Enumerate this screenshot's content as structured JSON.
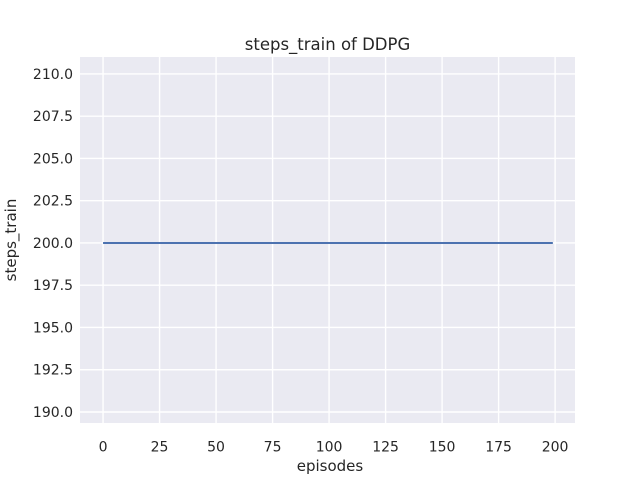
{
  "chart_data": {
    "type": "line",
    "title": "steps_train of DDPG",
    "xlabel": "episodes",
    "ylabel": "steps_train",
    "x_ticks": [
      0,
      25,
      50,
      75,
      100,
      125,
      150,
      175,
      200
    ],
    "x_tick_labels": [
      "0",
      "25",
      "50",
      "75",
      "100",
      "125",
      "150",
      "175",
      "200"
    ],
    "y_ticks": [
      190.0,
      192.5,
      195.0,
      197.5,
      200.0,
      202.5,
      205.0,
      207.5,
      210.0
    ],
    "y_tick_labels": [
      "190.0",
      "192.5",
      "195.0",
      "197.5",
      "200.0",
      "202.5",
      "205.0",
      "207.5",
      "210.0"
    ],
    "xlim": [
      -10.2,
      208.8
    ],
    "ylim": [
      189.35,
      211.0
    ],
    "grid": true,
    "legend": "none",
    "series": [
      {
        "name": "steps_train",
        "x": [
          0,
          199
        ],
        "y": [
          200.0,
          200.0
        ],
        "color": "#4C72B0",
        "note": "constant value 200 for every episode 0-199"
      }
    ],
    "plot_background_color": "#EAEAF2",
    "grid_color": "#FFFFFF",
    "text_color": "#262626",
    "figure_background_color": "#FFFFFF"
  }
}
